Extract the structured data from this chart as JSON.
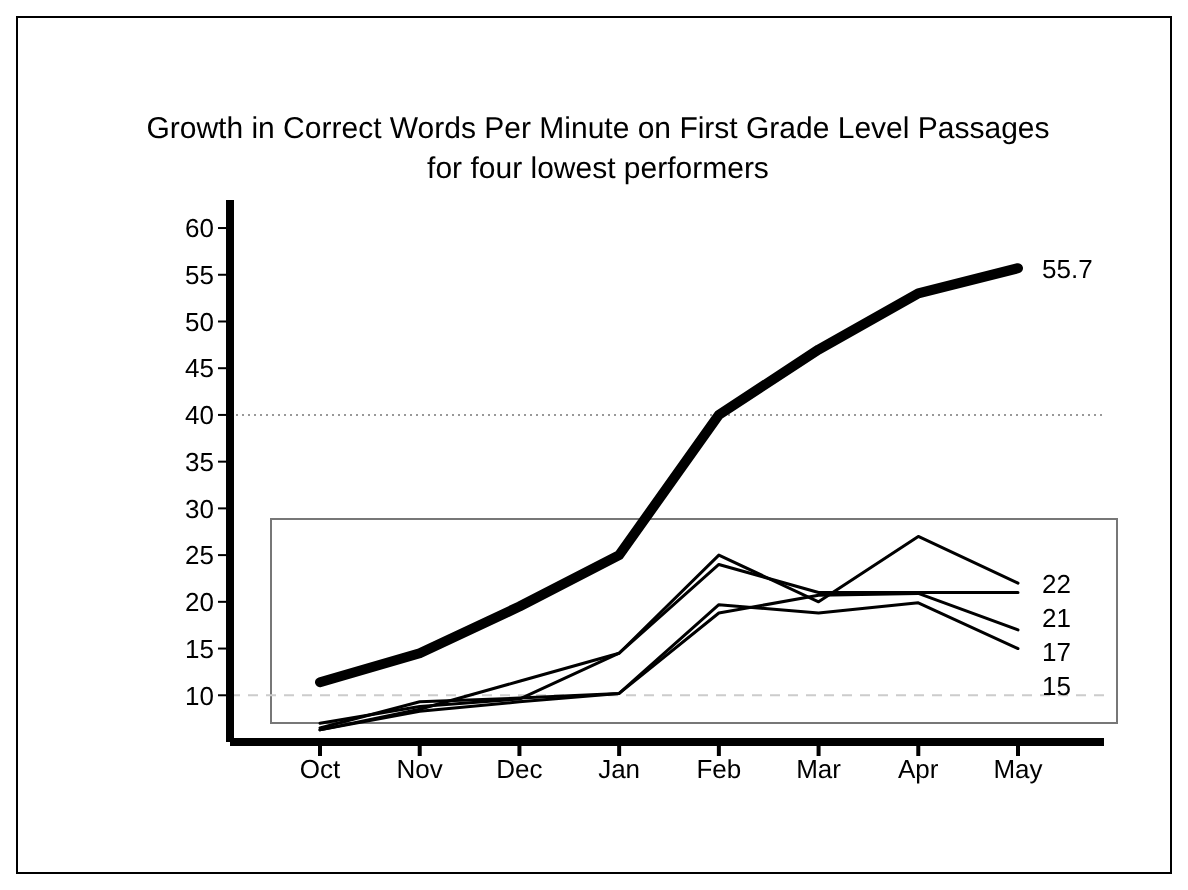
{
  "chart_data": {
    "type": "line",
    "title": "Growth in Correct Words Per Minute on First Grade Level Passages for four lowest performers",
    "categories": [
      "Oct",
      "Nov",
      "Dec",
      "Jan",
      "Feb",
      "Mar",
      "Apr",
      "May"
    ],
    "series": [
      {
        "color": "#000000",
        "values": [
          11.4,
          14.5,
          19.5,
          25,
          40,
          47,
          53,
          55.7
        ],
        "value_labels": [
          null,
          null,
          null,
          null,
          null,
          null,
          null,
          "55.7"
        ]
      },
      {
        "color": "#000000",
        "values": [
          6.3,
          8.5,
          11.5,
          14.5,
          25,
          20,
          27,
          22
        ],
        "value_labels": [
          null,
          null,
          null,
          null,
          null,
          null,
          null,
          "22"
        ]
      },
      {
        "color": "#000000",
        "values": [
          7,
          8.8,
          9.6,
          14.5,
          24,
          21,
          21,
          21
        ],
        "value_labels": [
          null,
          null,
          null,
          null,
          null,
          null,
          null,
          "21"
        ]
      },
      {
        "color": "#000000",
        "values": [
          6.5,
          9.3,
          9.7,
          10.2,
          18.8,
          20.7,
          20.9,
          17
        ],
        "value_labels": [
          null,
          null,
          null,
          null,
          null,
          null,
          null,
          "17"
        ]
      },
      {
        "color": "#000000",
        "values": [
          6.3,
          8.3,
          9.3,
          10.2,
          19.7,
          18.8,
          19.9,
          15
        ],
        "value_labels": [
          null,
          null,
          null,
          null,
          null,
          null,
          null,
          "15"
        ]
      }
    ],
    "ylim": [
      5,
      63
    ],
    "yticks": [
      10,
      15,
      20,
      25,
      30,
      35,
      40,
      45,
      50,
      55,
      60
    ],
    "ref_lines": [
      {
        "axis": "y",
        "value": 40,
        "color": "#999999",
        "line_style": "dotted"
      },
      {
        "axis": "y",
        "value": 10,
        "color": "#cccccc",
        "line_style": "dashed"
      }
    ],
    "marker": "none",
    "line_style": "solid"
  }
}
